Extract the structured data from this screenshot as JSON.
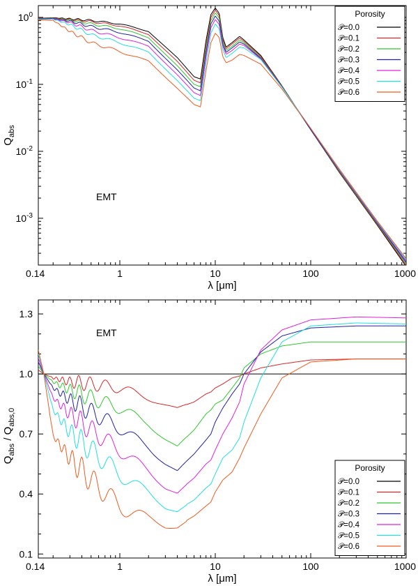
{
  "chart_data": [
    {
      "type": "line",
      "title": "",
      "xlabel": "λ [μm]",
      "ylabel_main": "Q",
      "ylabel_sub": "abs",
      "xscale": "log",
      "yscale": "log",
      "xlim": [
        0.14,
        1000
      ],
      "ylim": [
        0.0002,
        1.5
      ],
      "xticks": [
        {
          "value": 0.14,
          "label": "0.14"
        },
        {
          "value": 1,
          "label": "1"
        },
        {
          "value": 10,
          "label": "10"
        },
        {
          "value": 100,
          "label": "100"
        },
        {
          "value": 1000,
          "label": "1000"
        }
      ],
      "yticks": [
        {
          "value": 1,
          "base": "10",
          "exp": "0"
        },
        {
          "value": 0.1,
          "base": "10",
          "exp": "-1"
        },
        {
          "value": 0.01,
          "base": "10",
          "exp": "-2"
        },
        {
          "value": 0.001,
          "base": "10",
          "exp": "-3"
        }
      ],
      "annotation": "EMT",
      "legend": {
        "title": "Porosity",
        "position": "top-right"
      },
      "series": [
        {
          "name": "𝒫=0.0",
          "color": "#000000",
          "x": [
            0.14,
            0.2,
            0.3,
            0.5,
            1,
            2,
            4,
            6,
            7,
            8,
            9,
            10,
            11,
            12,
            13,
            15,
            18,
            20,
            30,
            50,
            100,
            200,
            500,
            1000
          ],
          "y": [
            0.97,
            0.99,
            0.95,
            0.9,
            0.8,
            0.62,
            0.25,
            0.13,
            0.12,
            0.45,
            1.1,
            1.38,
            1.15,
            0.5,
            0.36,
            0.42,
            0.52,
            0.46,
            0.27,
            0.095,
            0.021,
            0.0048,
            0.00078,
            0.00019
          ]
        },
        {
          "name": "𝒫=0.1",
          "color": "#d62728",
          "x": [
            0.14,
            0.2,
            0.3,
            0.5,
            1,
            2,
            4,
            6,
            7,
            8,
            9,
            10,
            11,
            12,
            13,
            15,
            18,
            20,
            30,
            50,
            100,
            200,
            500,
            1000
          ],
          "y": [
            0.97,
            0.98,
            0.93,
            0.86,
            0.75,
            0.56,
            0.22,
            0.115,
            0.105,
            0.4,
            1.0,
            1.28,
            1.07,
            0.47,
            0.34,
            0.4,
            0.49,
            0.44,
            0.26,
            0.094,
            0.021,
            0.0049,
            0.0008,
            0.0002
          ]
        },
        {
          "name": "𝒫=0.2",
          "color": "#2ec82e",
          "x": [
            0.14,
            0.2,
            0.3,
            0.5,
            1,
            2,
            4,
            6,
            7,
            8,
            9,
            10,
            11,
            12,
            13,
            15,
            18,
            20,
            30,
            50,
            100,
            200,
            500,
            1000
          ],
          "y": [
            0.96,
            0.97,
            0.91,
            0.8,
            0.68,
            0.5,
            0.19,
            0.1,
            0.092,
            0.35,
            0.9,
            1.17,
            0.98,
            0.44,
            0.32,
            0.37,
            0.46,
            0.42,
            0.25,
            0.093,
            0.021,
            0.005,
            0.00082,
            0.00021
          ]
        },
        {
          "name": "𝒫=0.3",
          "color": "#1f1fa8",
          "x": [
            0.14,
            0.2,
            0.3,
            0.5,
            1,
            2,
            4,
            6,
            7,
            8,
            9,
            10,
            11,
            12,
            13,
            15,
            18,
            20,
            30,
            50,
            100,
            200,
            500,
            1000
          ],
          "y": [
            0.95,
            0.96,
            0.88,
            0.73,
            0.6,
            0.44,
            0.165,
            0.088,
            0.08,
            0.3,
            0.8,
            1.05,
            0.88,
            0.4,
            0.3,
            0.35,
            0.43,
            0.4,
            0.245,
            0.092,
            0.021,
            0.0051,
            0.00084,
            0.00022
          ]
        },
        {
          "name": "𝒫=0.4",
          "color": "#e020e0",
          "x": [
            0.14,
            0.2,
            0.3,
            0.5,
            1,
            2,
            4,
            6,
            7,
            8,
            9,
            10,
            11,
            12,
            13,
            15,
            18,
            20,
            30,
            50,
            100,
            200,
            500,
            1000
          ],
          "y": [
            0.94,
            0.95,
            0.84,
            0.64,
            0.5,
            0.37,
            0.14,
            0.075,
            0.068,
            0.26,
            0.7,
            0.93,
            0.78,
            0.37,
            0.28,
            0.32,
            0.4,
            0.38,
            0.24,
            0.091,
            0.022,
            0.0052,
            0.00086,
            0.00023
          ]
        },
        {
          "name": "𝒫=0.5",
          "color": "#20e0e0",
          "x": [
            0.14,
            0.2,
            0.3,
            0.5,
            1,
            2,
            4,
            6,
            7,
            8,
            9,
            10,
            11,
            12,
            13,
            15,
            18,
            20,
            30,
            50,
            100,
            200,
            500,
            1000
          ],
          "y": [
            0.93,
            0.94,
            0.78,
            0.55,
            0.42,
            0.3,
            0.115,
            0.062,
            0.057,
            0.21,
            0.58,
            0.8,
            0.67,
            0.33,
            0.25,
            0.29,
            0.36,
            0.35,
            0.235,
            0.09,
            0.022,
            0.0053,
            0.00088,
            0.00024
          ]
        },
        {
          "name": "𝒫=0.6",
          "color": "#f05a1e",
          "x": [
            0.14,
            0.2,
            0.3,
            0.5,
            1,
            2,
            4,
            6,
            7,
            8,
            9,
            10,
            11,
            12,
            13,
            15,
            18,
            20,
            30,
            50,
            100,
            200,
            500,
            1000
          ],
          "y": [
            0.92,
            0.9,
            0.62,
            0.42,
            0.31,
            0.22,
            0.088,
            0.05,
            0.046,
            0.16,
            0.42,
            0.58,
            0.5,
            0.26,
            0.21,
            0.23,
            0.28,
            0.27,
            0.2,
            0.085,
            0.022,
            0.0054,
            0.0009,
            0.00025
          ]
        }
      ]
    },
    {
      "type": "line",
      "title": "",
      "xlabel": "λ [μm]",
      "ylabel_main": "Q",
      "ylabel_sub": "abs",
      "ylabel_mid": " / Q",
      "ylabel_sub2": "abs,0",
      "xscale": "log",
      "yscale": "linear",
      "xlim": [
        0.14,
        1000
      ],
      "ylim": [
        0.08,
        1.37
      ],
      "xticks": [
        {
          "value": 0.14,
          "label": "0.14"
        },
        {
          "value": 1,
          "label": "1"
        },
        {
          "value": 10,
          "label": "10"
        },
        {
          "value": 100,
          "label": "100"
        },
        {
          "value": 1000,
          "label": "1000"
        }
      ],
      "yticks": [
        {
          "value": 0.1,
          "label": "0.1"
        },
        {
          "value": 0.4,
          "label": "0.4"
        },
        {
          "value": 0.7,
          "label": "0.7"
        },
        {
          "value": 1.0,
          "label": "1.0"
        },
        {
          "value": 1.3,
          "label": "1.3"
        }
      ],
      "annotation": "EMT",
      "legend": {
        "title": "Porosity",
        "position": "bottom-right"
      },
      "series": [
        {
          "name": "𝒫=0.0",
          "color": "#000000",
          "x": [
            0.14,
            1000
          ],
          "y": [
            1.0,
            1.0
          ]
        },
        {
          "name": "𝒫=0.1",
          "color": "#d62728",
          "x": [
            0.14,
            0.16,
            0.2,
            0.3,
            0.5,
            1,
            2,
            3,
            4,
            6,
            8,
            9,
            10,
            12,
            15,
            18,
            20,
            30,
            50,
            100,
            300,
            1000
          ],
          "y": [
            1.02,
            1.0,
            0.98,
            0.96,
            0.95,
            0.93,
            0.88,
            0.85,
            0.83,
            0.86,
            0.9,
            0.91,
            0.93,
            0.95,
            0.98,
            0.99,
            1.0,
            1.03,
            1.05,
            1.07,
            1.075,
            1.075
          ]
        },
        {
          "name": "𝒫=0.2",
          "color": "#2ec82e",
          "x": [
            0.14,
            0.16,
            0.2,
            0.3,
            0.5,
            1,
            2,
            3,
            4,
            6,
            8,
            9,
            10,
            12,
            15,
            18,
            20,
            30,
            50,
            100,
            300,
            1000
          ],
          "y": [
            1.04,
            1.0,
            0.96,
            0.92,
            0.88,
            0.83,
            0.75,
            0.68,
            0.64,
            0.72,
            0.8,
            0.82,
            0.85,
            0.87,
            0.93,
            0.98,
            1.03,
            1.1,
            1.14,
            1.16,
            1.16,
            1.16
          ]
        },
        {
          "name": "𝒫=0.3",
          "color": "#1f1fa8",
          "x": [
            0.14,
            0.16,
            0.2,
            0.3,
            0.5,
            1,
            2,
            3,
            4,
            6,
            8,
            9,
            10,
            12,
            15,
            18,
            20,
            30,
            50,
            100,
            300,
            1000
          ],
          "y": [
            1.06,
            1.0,
            0.93,
            0.87,
            0.81,
            0.73,
            0.63,
            0.56,
            0.52,
            0.6,
            0.67,
            0.7,
            0.76,
            0.83,
            0.9,
            0.95,
            1.0,
            1.11,
            1.19,
            1.23,
            1.24,
            1.24
          ]
        },
        {
          "name": "𝒫=0.4",
          "color": "#e020e0",
          "x": [
            0.14,
            0.16,
            0.2,
            0.3,
            0.5,
            1,
            2,
            3,
            4,
            6,
            8,
            9,
            10,
            12,
            15,
            18,
            20,
            30,
            50,
            100,
            300,
            1000
          ],
          "y": [
            1.08,
            1.0,
            0.88,
            0.8,
            0.72,
            0.62,
            0.51,
            0.44,
            0.41,
            0.48,
            0.55,
            0.57,
            0.62,
            0.7,
            0.78,
            0.86,
            0.95,
            1.12,
            1.22,
            1.27,
            1.285,
            1.28
          ]
        },
        {
          "name": "𝒫=0.5",
          "color": "#20e0e0",
          "x": [
            0.14,
            0.16,
            0.2,
            0.3,
            0.5,
            1,
            2,
            3,
            4,
            6,
            8,
            9,
            10,
            12,
            15,
            18,
            20,
            30,
            50,
            100,
            300,
            1000
          ],
          "y": [
            1.1,
            1.0,
            0.82,
            0.71,
            0.62,
            0.5,
            0.4,
            0.34,
            0.32,
            0.37,
            0.43,
            0.45,
            0.5,
            0.58,
            0.62,
            0.68,
            0.76,
            0.98,
            1.16,
            1.24,
            1.255,
            1.25
          ]
        },
        {
          "name": "𝒫=0.6",
          "color": "#f05a1e",
          "x": [
            0.14,
            0.16,
            0.2,
            0.3,
            0.5,
            1,
            2,
            3,
            4,
            6,
            8,
            9,
            10,
            12,
            15,
            18,
            20,
            30,
            50,
            100,
            300,
            1000
          ],
          "y": [
            1.12,
            1.0,
            0.69,
            0.58,
            0.47,
            0.34,
            0.27,
            0.24,
            0.24,
            0.29,
            0.34,
            0.36,
            0.41,
            0.47,
            0.51,
            0.58,
            0.63,
            0.8,
            0.98,
            1.06,
            1.075,
            1.075
          ]
        }
      ]
    }
  ]
}
